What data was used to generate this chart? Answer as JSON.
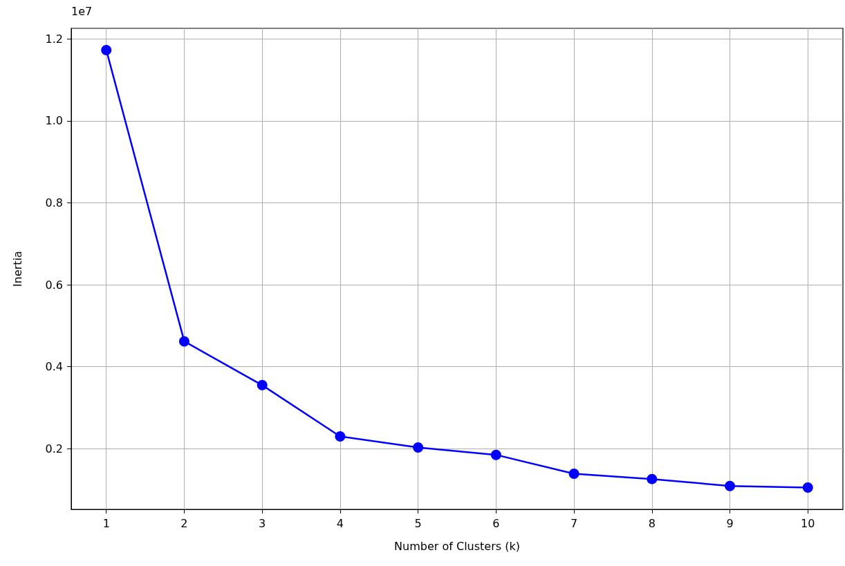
{
  "chart_data": {
    "type": "line",
    "xlabel": "Number of Clusters (k)",
    "ylabel": "Inertia",
    "annotations": [
      "1e7"
    ],
    "x": [
      1,
      2,
      3,
      4,
      5,
      6,
      7,
      8,
      9,
      10
    ],
    "series": [
      {
        "color": "#0000ff",
        "values": [
          1.173,
          0.462,
          0.355,
          0.23,
          0.203,
          0.185,
          0.139,
          0.126,
          0.109,
          0.105
        ]
      }
    ],
    "xlim": [
      0.55,
      10.45
    ],
    "xticks": [
      1,
      2,
      3,
      4,
      5,
      6,
      7,
      8,
      9,
      10
    ],
    "ylim": [
      0.052,
      1.226
    ],
    "yticks": [
      0.2,
      0.4,
      0.6,
      0.8,
      {
        "value": 1,
        "label": "1.0"
      },
      1.2
    ],
    "grid": true,
    "marker": "circle",
    "line_style": "solid"
  }
}
